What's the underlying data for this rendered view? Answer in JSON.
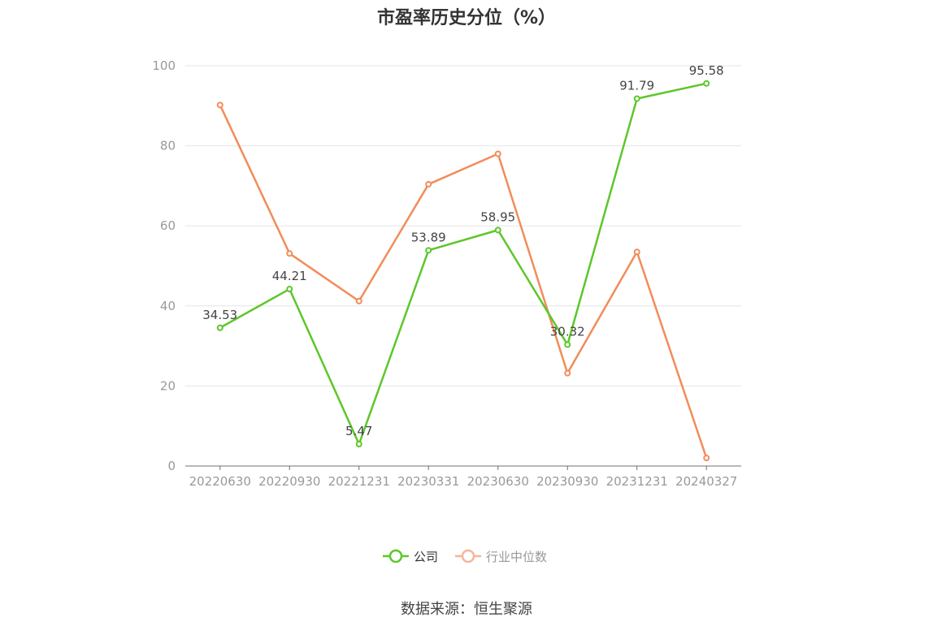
{
  "chart_data": {
    "type": "line",
    "title": "市盈率历史分位（%）",
    "categories": [
      "20220630",
      "20220930",
      "20221231",
      "20230331",
      "20230630",
      "20230930",
      "20231231",
      "20240327"
    ],
    "ylim": [
      0,
      100
    ],
    "yticks": [
      "0",
      "20",
      "40",
      "60",
      "80",
      "100"
    ],
    "grid": true,
    "legend": "bottom",
    "series": [
      {
        "name": "公司",
        "color": "#5cc72a",
        "values": [
          34.53,
          44.21,
          5.47,
          53.89,
          58.95,
          30.32,
          91.79,
          95.58
        ],
        "labels": [
          "34.53",
          "44.21",
          "5.47",
          "53.89",
          "58.95",
          "30.32",
          "91.79",
          "95.58"
        ]
      },
      {
        "name": "行业中位数",
        "color": "#f28c5a",
        "values": [
          90.2,
          53.1,
          41.2,
          70.4,
          78.0,
          23.2,
          53.5,
          2.0
        ]
      }
    ]
  },
  "source": "数据来源：恒生聚源"
}
